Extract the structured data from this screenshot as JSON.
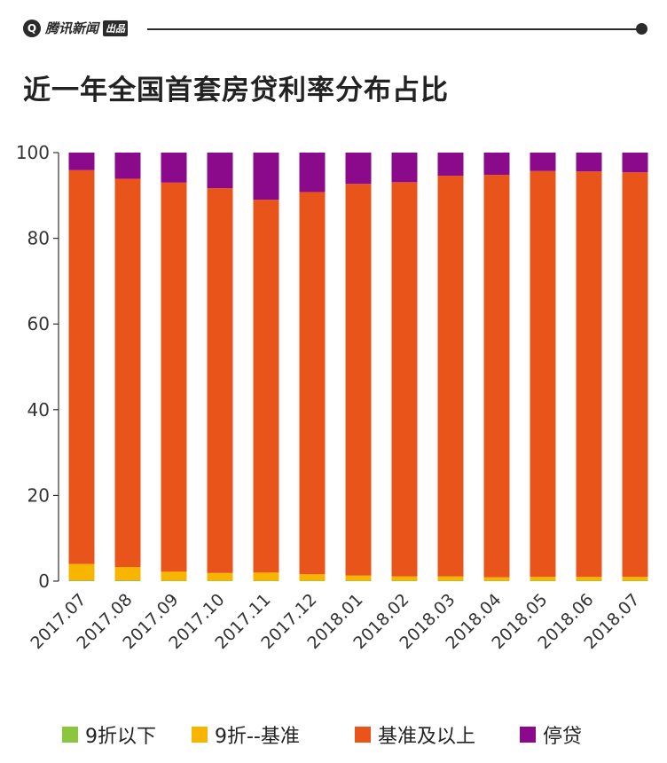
{
  "header": {
    "logo_text": "腾讯新闻",
    "logo_badge": "出品"
  },
  "colors": {
    "header": "#2b2b2b",
    "series": [
      "#8cc63f",
      "#f7b500",
      "#e8541a",
      "#8b0a8c"
    ]
  },
  "chart_data": {
    "type": "bar",
    "stacked": true,
    "title": "近一年全国首套房贷利率分布占比",
    "xlabel": "",
    "ylabel": "",
    "ylim": [
      0,
      100
    ],
    "yticks": [
      0,
      20,
      40,
      60,
      80,
      100
    ],
    "grid": false,
    "legend_position": "bottom",
    "categories": [
      "2017.07",
      "2017.08",
      "2017.09",
      "2017.10",
      "2017.11",
      "2017.12",
      "2018.01",
      "2018.02",
      "2018.03",
      "2018.04",
      "2018.05",
      "2018.06",
      "2018.07"
    ],
    "series": [
      {
        "name": "9折以下",
        "color": "#8cc63f",
        "values": [
          0.2,
          0.2,
          0.1,
          0.1,
          0.1,
          0.1,
          0.1,
          0.1,
          0.1,
          0.1,
          0.1,
          0.1,
          0.1
        ]
      },
      {
        "name": "9折--基准",
        "color": "#f7b500",
        "values": [
          3.8,
          3.1,
          2.1,
          1.8,
          1.9,
          1.5,
          1.2,
          1.0,
          1.0,
          0.8,
          0.9,
          0.9,
          0.9
        ]
      },
      {
        "name": "基准及以上",
        "color": "#e8541a",
        "values": [
          91.9,
          90.6,
          90.8,
          89.8,
          87.0,
          89.2,
          91.4,
          92.0,
          93.5,
          93.9,
          94.7,
          94.6,
          94.4
        ]
      },
      {
        "name": "停贷",
        "color": "#8b0a8c",
        "values": [
          4.1,
          6.1,
          7.0,
          8.3,
          11.0,
          9.2,
          7.3,
          6.9,
          5.4,
          5.2,
          4.3,
          4.4,
          4.6
        ]
      }
    ]
  }
}
